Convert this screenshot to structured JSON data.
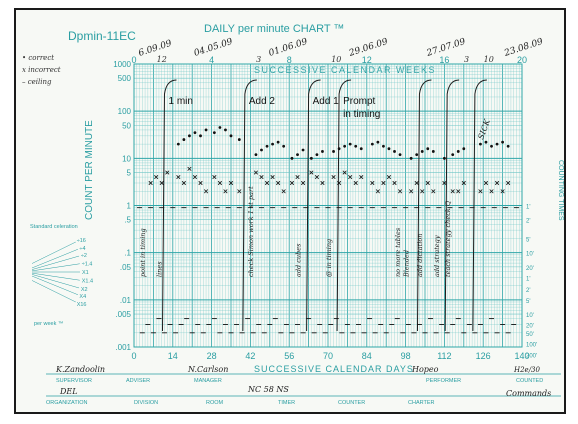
{
  "chart_data": {
    "type": "scatter",
    "form_id": "Dpmin-11EC",
    "title": "DAILY per minute CHART ™",
    "top_scale_label": "SUCCESSIVE CALENDAR WEEKS",
    "bottom_scale_label": "SUCCESSIVE CALENDAR DAYS",
    "ylabel": "COUNT PER MINUTE",
    "right_axis_label": "COUNTING TIMES",
    "y_scale": "log",
    "ylim": [
      0.001,
      1000
    ],
    "xlim": [
      0,
      140
    ],
    "y_ticks": [
      "1000",
      "500",
      "100",
      "50",
      "10",
      "5",
      "1",
      ".5",
      ".1",
      ".05",
      ".01",
      ".005",
      ".001"
    ],
    "x_ticks": [
      "0",
      "14",
      "28",
      "42",
      "56",
      "70",
      "84",
      "98",
      "112",
      "126",
      "140"
    ],
    "week_ticks": [
      "0",
      "4",
      "8",
      "12",
      "16",
      "20"
    ],
    "counting_times": [
      "1'",
      "2'",
      "5'",
      "10'",
      "20'",
      "1'",
      "2'",
      "5'",
      "10'",
      "20'",
      "50'",
      "100'",
      "200'"
    ],
    "legend_notes": [
      "• correct",
      "x incorrect",
      "– ceiling"
    ],
    "dates_at_top": [
      {
        "day": 2,
        "label": "6.09.09"
      },
      {
        "day": 22,
        "label": "04.05.09"
      },
      {
        "day": 49,
        "label": "01.06.09"
      },
      {
        "day": 78,
        "label": "29.06.09"
      },
      {
        "day": 106,
        "label": "27.07.09"
      },
      {
        "day": 134,
        "label": "23.08.09"
      }
    ],
    "week_scribbles": [
      "12",
      "3",
      "10",
      "12"
    ],
    "phase_changes": [
      {
        "day": 11,
        "label": "1 min"
      },
      {
        "day": 40,
        "label": "Add 2"
      },
      {
        "day": 63,
        "label": "Add 1"
      },
      {
        "day": 74,
        "label": "Prompt in timing"
      },
      {
        "day": 103,
        "label": ""
      },
      {
        "day": 113,
        "label": ""
      },
      {
        "day": 123,
        "label": ""
      }
    ],
    "vertical_notes": [
      {
        "day": 4,
        "text": "point in timing"
      },
      {
        "day": 10,
        "text": "lines"
      },
      {
        "day": 43,
        "text": "check Simon work 1 st part"
      },
      {
        "day": 60,
        "text": "add cubes"
      },
      {
        "day": 71,
        "text": "@ in timing"
      },
      {
        "day": 96,
        "text": "no more tables"
      },
      {
        "day": 99,
        "text": "Blended"
      },
      {
        "day": 104,
        "text": "add dictation"
      },
      {
        "day": 110,
        "text": "add strategy"
      },
      {
        "day": 114,
        "text": "teach strategy check Q"
      }
    ],
    "absence_note": {
      "day": 122,
      "text": "SICK"
    },
    "series": [
      {
        "name": "correct",
        "marker": "dot",
        "x": [
          16,
          18,
          20,
          22,
          24,
          26,
          29,
          31,
          33,
          35,
          38,
          44,
          46,
          48,
          50,
          52,
          54,
          57,
          59,
          61,
          64,
          66,
          68,
          72,
          74,
          76,
          78,
          80,
          82,
          86,
          88,
          90,
          92,
          94,
          96,
          100,
          102,
          104,
          106,
          108,
          112,
          115,
          117,
          119,
          125,
          127,
          129,
          131,
          133,
          135
        ],
        "y": [
          20,
          25,
          30,
          35,
          30,
          40,
          35,
          45,
          40,
          30,
          25,
          12,
          15,
          18,
          20,
          22,
          18,
          10,
          12,
          15,
          10,
          12,
          14,
          14,
          16,
          18,
          20,
          18,
          16,
          20,
          22,
          18,
          16,
          14,
          12,
          10,
          12,
          14,
          16,
          14,
          10,
          12,
          14,
          16,
          20,
          22,
          18,
          20,
          22,
          18
        ]
      },
      {
        "name": "incorrect",
        "marker": "x",
        "x": [
          6,
          8,
          10,
          12,
          16,
          18,
          20,
          22,
          24,
          26,
          29,
          31,
          33,
          35,
          38,
          44,
          46,
          48,
          50,
          52,
          54,
          57,
          59,
          61,
          64,
          66,
          68,
          72,
          74,
          76,
          78,
          80,
          82,
          86,
          88,
          90,
          92,
          94,
          96,
          100,
          102,
          104,
          106,
          108,
          112,
          115,
          117,
          119,
          125,
          127,
          129,
          131,
          133,
          135
        ],
        "y": [
          3,
          4,
          3,
          5,
          4,
          3,
          6,
          4,
          3,
          2,
          4,
          3,
          2,
          3,
          2,
          5,
          4,
          3,
          4,
          3,
          2,
          3,
          4,
          3,
          5,
          4,
          3,
          4,
          3,
          5,
          4,
          3,
          4,
          3,
          2,
          3,
          4,
          3,
          2,
          2,
          3,
          2,
          3,
          2,
          3,
          2,
          2,
          3,
          2,
          3,
          2,
          3,
          2,
          3
        ]
      },
      {
        "name": "ceiling",
        "marker": "dash",
        "x": [
          2,
          6,
          10,
          14,
          18,
          22,
          26,
          30,
          34,
          38,
          42,
          46,
          50,
          54,
          58,
          62,
          66,
          70,
          74,
          78,
          82,
          86,
          90,
          94,
          98,
          102,
          106,
          110,
          114,
          118,
          122,
          126,
          130,
          134,
          138
        ],
        "y": [
          0.9,
          0.9,
          0.9,
          0.9,
          0.9,
          0.9,
          0.9,
          0.9,
          0.9,
          0.9,
          0.9,
          0.9,
          0.9,
          0.9,
          0.9,
          0.9,
          0.9,
          0.9,
          0.9,
          0.9,
          0.9,
          0.9,
          0.9,
          0.9,
          0.9,
          0.9,
          0.9,
          0.9,
          0.9,
          0.9,
          0.9,
          0.9,
          0.9,
          0.9,
          0.9
        ]
      },
      {
        "name": "timing floor",
        "marker": "dash",
        "x": [
          3,
          5,
          7,
          9,
          11,
          13,
          15,
          17,
          19,
          21,
          23,
          25,
          27,
          29,
          31,
          33,
          35,
          37,
          39,
          41,
          43,
          45,
          47,
          49,
          51,
          53,
          55,
          57,
          59,
          61,
          63,
          65,
          67,
          69,
          71,
          73,
          75,
          77,
          79,
          81,
          83,
          85,
          87,
          89,
          91,
          93,
          95,
          97,
          99,
          101,
          103,
          105,
          107,
          109,
          111,
          113,
          115,
          117,
          119,
          121,
          123,
          125,
          127,
          129,
          131,
          133,
          135,
          137
        ],
        "y": [
          0.002,
          0.003,
          0.002,
          0.004,
          0.002,
          0.003,
          0.002,
          0.003,
          0.004,
          0.002,
          0.003,
          0.002,
          0.003,
          0.004,
          0.002,
          0.003,
          0.002,
          0.003,
          0.002,
          0.004,
          0.002,
          0.003,
          0.002,
          0.003,
          0.004,
          0.002,
          0.003,
          0.002,
          0.003,
          0.002,
          0.004,
          0.002,
          0.003,
          0.002,
          0.003,
          0.004,
          0.002,
          0.003,
          0.002,
          0.003,
          0.002,
          0.004,
          0.002,
          0.003,
          0.002,
          0.003,
          0.004,
          0.002,
          0.003,
          0.002,
          0.003,
          0.002,
          0.004,
          0.002,
          0.003,
          0.002,
          0.003,
          0.004,
          0.002,
          0.003,
          0.002,
          0.003,
          0.002,
          0.004,
          0.002,
          0.003,
          0.002,
          0.003
        ]
      }
    ]
  },
  "sidebar": {
    "standard_celeration": "Standard celeration",
    "per_week": "per week ™",
    "fan_labels": [
      "X16",
      "X4",
      "X2",
      "X1.4",
      "X1",
      "÷1.4",
      "÷2",
      "÷4",
      "÷16"
    ]
  },
  "footer": {
    "fields": [
      {
        "value": "K.Zandoolin",
        "label": "SUPERVISOR"
      },
      {
        "value": "",
        "label": "ADVISER"
      },
      {
        "value": "N.Carlson",
        "label": "MANAGER"
      },
      {
        "value": "",
        "label": "PERFORMER"
      },
      {
        "value": "Hopeo",
        "label": ""
      },
      {
        "value": "H2e/30",
        "label": "COUNTED"
      },
      {
        "value": "DEL",
        "label": "ORGANIZATION"
      },
      {
        "value": "",
        "label": "DIVISION"
      },
      {
        "value": "",
        "label": "ROOM"
      },
      {
        "value": "NC 58 NS",
        "label": "TIMER"
      },
      {
        "value": "",
        "label": "COUNTER"
      },
      {
        "value": "",
        "label": "CHARTER"
      },
      {
        "value": "Commands",
        "label": ""
      }
    ]
  },
  "colors": {
    "grid": "#6fc6c6",
    "grid_major": "#2fa6a8",
    "print": "#2a9ea2",
    "ink": "#222222",
    "paper": "#f7f9f5"
  }
}
